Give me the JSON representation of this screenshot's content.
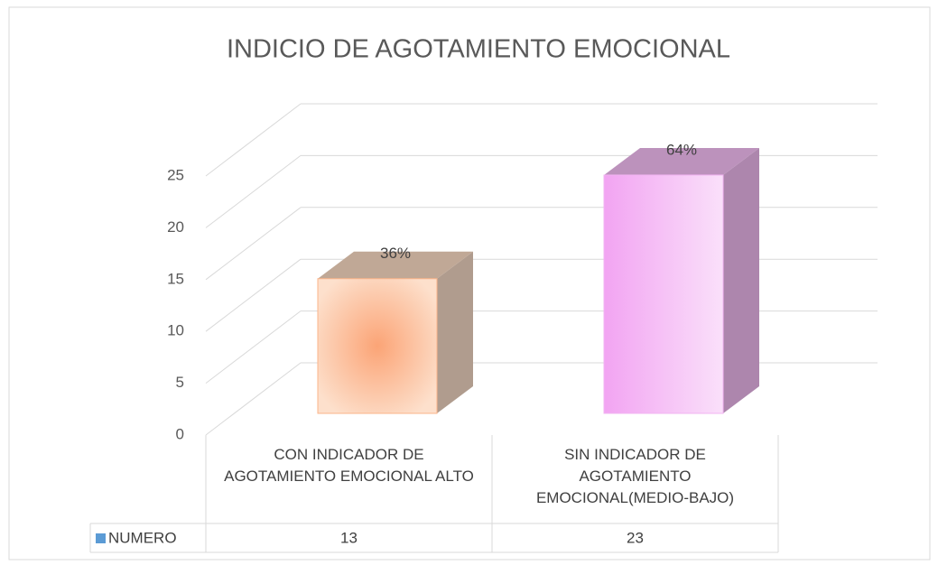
{
  "chart_data": {
    "type": "bar3d",
    "title": "INDICIO DE AGOTAMIENTO EMOCIONAL",
    "categories": [
      "CON INDICADOR DE AGOTAMIENTO EMOCIONAL ALTO",
      "SIN INDICADOR  DE AGOTAMIENTO EMOCIONAL(MEDIO-BAJO)"
    ],
    "series": [
      {
        "name": "NUMERO",
        "color": "#5b9bd5",
        "values": [
          13,
          23
        ],
        "value_labels": [
          "36%",
          "64%"
        ]
      }
    ],
    "colors": [
      "#fbb48a",
      "#f2b4f2"
    ],
    "ylim": [
      0,
      25
    ],
    "yticks": [
      0,
      5,
      10,
      15,
      20,
      25
    ],
    "grid": true
  }
}
